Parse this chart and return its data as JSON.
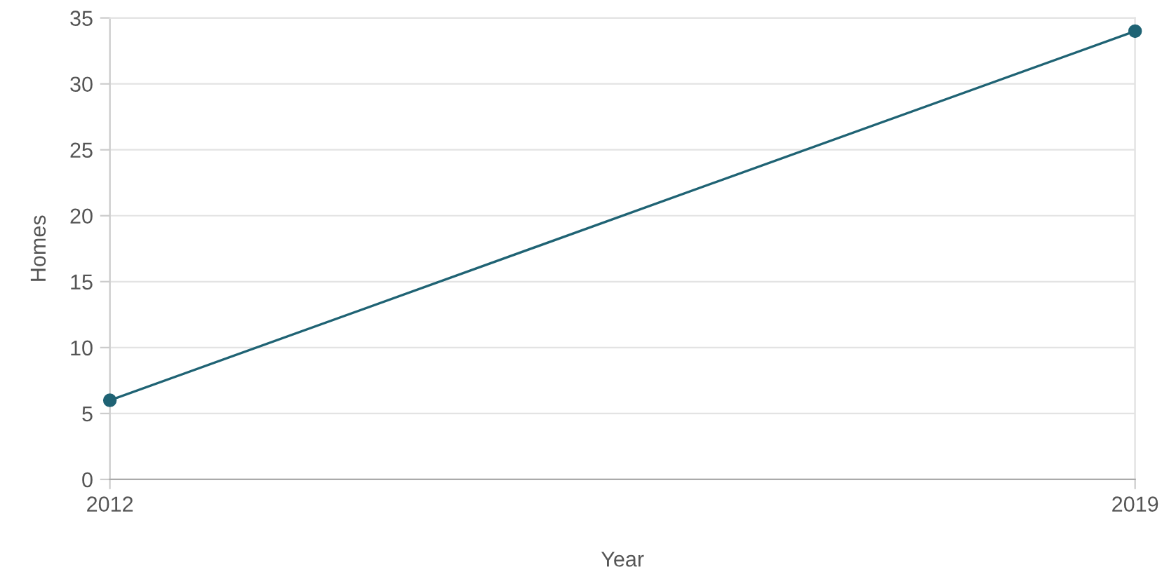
{
  "chart_data": {
    "type": "line",
    "xlabel": "Year",
    "ylabel": "Homes",
    "x": [
      2012,
      2019
    ],
    "series": [
      {
        "color": "#1f6374",
        "values": [
          6,
          34
        ]
      }
    ],
    "xlim": [
      2012,
      2019
    ],
    "xticks": [
      2012,
      2019
    ],
    "ylim": [
      0,
      35
    ],
    "yticks": [
      0,
      5,
      10,
      15,
      20,
      25,
      30,
      35
    ],
    "grid": true,
    "marker": "circle",
    "line_style": "solid"
  }
}
